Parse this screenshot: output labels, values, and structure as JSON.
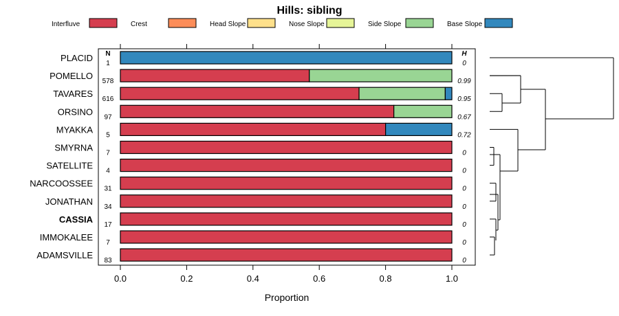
{
  "chart_data": {
    "type": "bar",
    "orientation": "horizontal",
    "stacked": true,
    "title": "Hills: sibling",
    "xlabel": "Proportion",
    "xlim": [
      0,
      1
    ],
    "xticks": [
      "0.0",
      "0.2",
      "0.4",
      "0.6",
      "0.8",
      "1.0"
    ],
    "n_header": "N",
    "h_header": "H",
    "legend": [
      {
        "name": "Interfluve",
        "color": "#D53E4F"
      },
      {
        "name": "Crest",
        "color": "#FC8D59"
      },
      {
        "name": "Head Slope",
        "color": "#FEE08B"
      },
      {
        "name": "Nose Slope",
        "color": "#E6F598"
      },
      {
        "name": "Side Slope",
        "color": "#99D594"
      },
      {
        "name": "Base Slope",
        "color": "#3288BD"
      }
    ],
    "rows": [
      {
        "name": "PLACID",
        "n": "1",
        "h": "0",
        "bold": false,
        "values": [
          0,
          0,
          0,
          0,
          0,
          1.0
        ]
      },
      {
        "name": "POMELLO",
        "n": "578",
        "h": "0.99",
        "bold": false,
        "values": [
          0.57,
          0,
          0,
          0,
          0.43,
          0
        ]
      },
      {
        "name": "TAVARES",
        "n": "616",
        "h": "0.95",
        "bold": false,
        "values": [
          0.72,
          0,
          0,
          0,
          0.26,
          0.02
        ]
      },
      {
        "name": "ORSINO",
        "n": "97",
        "h": "0.67",
        "bold": false,
        "values": [
          0.825,
          0,
          0,
          0,
          0.175,
          0
        ]
      },
      {
        "name": "MYAKKA",
        "n": "5",
        "h": "0.72",
        "bold": false,
        "values": [
          0.8,
          0,
          0,
          0,
          0,
          0.2
        ]
      },
      {
        "name": "SMYRNA",
        "n": "7",
        "h": "0",
        "bold": false,
        "values": [
          1.0,
          0,
          0,
          0,
          0,
          0
        ]
      },
      {
        "name": "SATELLITE",
        "n": "4",
        "h": "0",
        "bold": false,
        "values": [
          1.0,
          0,
          0,
          0,
          0,
          0
        ]
      },
      {
        "name": "NARCOOSSEE",
        "n": "31",
        "h": "0",
        "bold": false,
        "values": [
          1.0,
          0,
          0,
          0,
          0,
          0
        ]
      },
      {
        "name": "JONATHAN",
        "n": "34",
        "h": "0",
        "bold": false,
        "values": [
          1.0,
          0,
          0,
          0,
          0,
          0
        ]
      },
      {
        "name": "CASSIA",
        "n": "17",
        "h": "0",
        "bold": true,
        "values": [
          1.0,
          0,
          0,
          0,
          0,
          0
        ]
      },
      {
        "name": "IMMOKALEE",
        "n": "7",
        "h": "0",
        "bold": false,
        "values": [
          1.0,
          0,
          0,
          0,
          0,
          0
        ]
      },
      {
        "name": "ADAMSVILLE",
        "n": "83",
        "h": "0",
        "bold": false,
        "values": [
          1.0,
          0,
          0,
          0,
          0,
          0
        ]
      }
    ]
  }
}
